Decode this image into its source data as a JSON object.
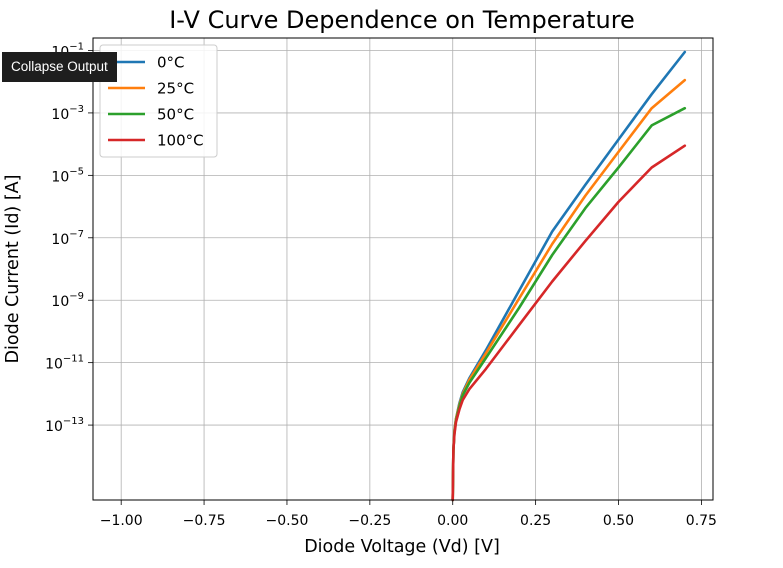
{
  "toolbar": {
    "collapse_label": "Collapse Output"
  },
  "chart_data": {
    "type": "line",
    "title": "I-V Curve Dependence on Temperature",
    "xlabel": "Diode Voltage (Vd) [V]",
    "ylabel": "Diode Current (Id) [A]",
    "xlim": [
      -1.085,
      0.785
    ],
    "ylim_log10": [
      -15.4,
      -0.6
    ],
    "yscale": "log",
    "grid": true,
    "legend_position": "top-left",
    "x_ticks": [
      {
        "value": -1.0,
        "label": "−1.00"
      },
      {
        "value": -0.75,
        "label": "−0.75"
      },
      {
        "value": -0.5,
        "label": "−0.50"
      },
      {
        "value": -0.25,
        "label": "−0.25"
      },
      {
        "value": 0.0,
        "label": "0.00"
      },
      {
        "value": 0.25,
        "label": "0.25"
      },
      {
        "value": 0.5,
        "label": "0.50"
      },
      {
        "value": 0.75,
        "label": "0.75"
      }
    ],
    "y_ticks": [
      {
        "exp": -1,
        "base": "10",
        "sup": "−1"
      },
      {
        "exp": -3,
        "base": "10",
        "sup": "−3"
      },
      {
        "exp": -5,
        "base": "10",
        "sup": "−5"
      },
      {
        "exp": -7,
        "base": "10",
        "sup": "−7"
      },
      {
        "exp": -9,
        "base": "10",
        "sup": "−9"
      },
      {
        "exp": -11,
        "base": "10",
        "sup": "−11"
      },
      {
        "exp": -13,
        "base": "10",
        "sup": "−13"
      }
    ],
    "series": [
      {
        "name": "0°C",
        "color": "#1f77b4",
        "x": [
          0.0,
          0.002,
          0.005,
          0.01,
          0.02,
          0.03,
          0.05,
          0.1,
          0.2,
          0.3,
          0.4,
          0.5,
          0.6,
          0.7
        ],
        "y_log10": [
          -15.4,
          -13.8,
          -13.2,
          -12.8,
          -12.3,
          -11.95,
          -11.5,
          -10.6,
          -8.7,
          -6.8,
          -5.3,
          -3.85,
          -2.4,
          -1.05
        ]
      },
      {
        "name": "25°C",
        "color": "#ff7f0e",
        "x": [
          0.0,
          0.002,
          0.005,
          0.01,
          0.02,
          0.03,
          0.05,
          0.1,
          0.2,
          0.3,
          0.4,
          0.5,
          0.6,
          0.7
        ],
        "y_log10": [
          -15.4,
          -13.8,
          -13.2,
          -12.8,
          -12.35,
          -12.0,
          -11.55,
          -10.7,
          -8.95,
          -7.2,
          -5.65,
          -4.25,
          -2.85,
          -1.95
        ]
      },
      {
        "name": "50°C",
        "color": "#2ca02c",
        "x": [
          0.0,
          0.002,
          0.005,
          0.01,
          0.02,
          0.03,
          0.05,
          0.1,
          0.2,
          0.3,
          0.4,
          0.5,
          0.6,
          0.7
        ],
        "y_log10": [
          -15.4,
          -13.8,
          -13.25,
          -12.85,
          -12.4,
          -12.05,
          -11.65,
          -10.85,
          -9.25,
          -7.55,
          -6.05,
          -4.75,
          -3.4,
          -2.85
        ]
      },
      {
        "name": "100°C",
        "color": "#d62728",
        "x": [
          0.0,
          0.002,
          0.005,
          0.01,
          0.02,
          0.03,
          0.05,
          0.1,
          0.2,
          0.3,
          0.4,
          0.5,
          0.6,
          0.7
        ],
        "y_log10": [
          -15.4,
          -13.8,
          -13.3,
          -12.9,
          -12.5,
          -12.2,
          -11.85,
          -11.2,
          -9.8,
          -8.4,
          -7.1,
          -5.85,
          -4.75,
          -4.05
        ]
      }
    ]
  }
}
